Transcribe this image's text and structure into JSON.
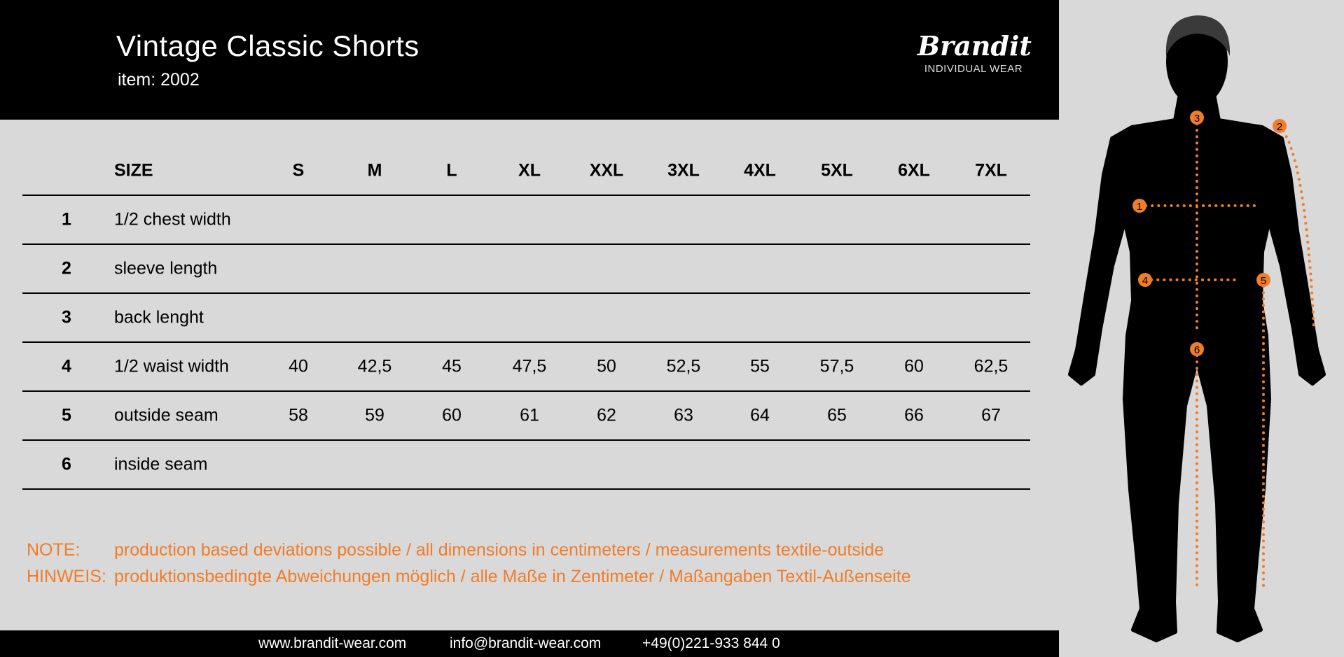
{
  "header": {
    "title": "Vintage Classic Shorts",
    "item": "item: 2002",
    "logo_script": "Brandit",
    "logo_sub": "INDIVIDUAL WEAR"
  },
  "table": {
    "size_label": "SIZE",
    "sizes": [
      "S",
      "M",
      "L",
      "XL",
      "XXL",
      "3XL",
      "4XL",
      "5XL",
      "6XL",
      "7XL"
    ],
    "rows": [
      {
        "num": "1",
        "label": "1/2 chest width",
        "values": [
          "",
          "",
          "",
          "",
          "",
          "",
          "",
          "",
          "",
          ""
        ]
      },
      {
        "num": "2",
        "label": "sleeve length",
        "values": [
          "",
          "",
          "",
          "",
          "",
          "",
          "",
          "",
          "",
          ""
        ]
      },
      {
        "num": "3",
        "label": "back lenght",
        "values": [
          "",
          "",
          "",
          "",
          "",
          "",
          "",
          "",
          "",
          ""
        ]
      },
      {
        "num": "4",
        "label": "1/2 waist width",
        "values": [
          "40",
          "42,5",
          "45",
          "47,5",
          "50",
          "52,5",
          "55",
          "57,5",
          "60",
          "62,5"
        ]
      },
      {
        "num": "5",
        "label": "outside seam",
        "values": [
          "58",
          "59",
          "60",
          "61",
          "62",
          "63",
          "64",
          "65",
          "66",
          "67"
        ]
      },
      {
        "num": "6",
        "label": "inside seam",
        "values": [
          "",
          "",
          "",
          "",
          "",
          "",
          "",
          "",
          "",
          ""
        ]
      }
    ]
  },
  "notes": [
    {
      "key": "NOTE:",
      "text": "production based deviations possible / all dimensions in centimeters / measurements textile-outside"
    },
    {
      "key": "HINWEIS:",
      "text": "produktionsbedingte Abweichungen möglich / alle Maße in Zentimeter / Maßangaben Textil-Außenseite"
    }
  ],
  "footer": {
    "website": "www.brandit-wear.com",
    "email": "info@brandit-wear.com",
    "phone": "+49(0)221-933 844 0"
  },
  "figure": {
    "markers": [
      "1",
      "2",
      "3",
      "4",
      "5",
      "6"
    ],
    "accent": "#f07d2a"
  }
}
